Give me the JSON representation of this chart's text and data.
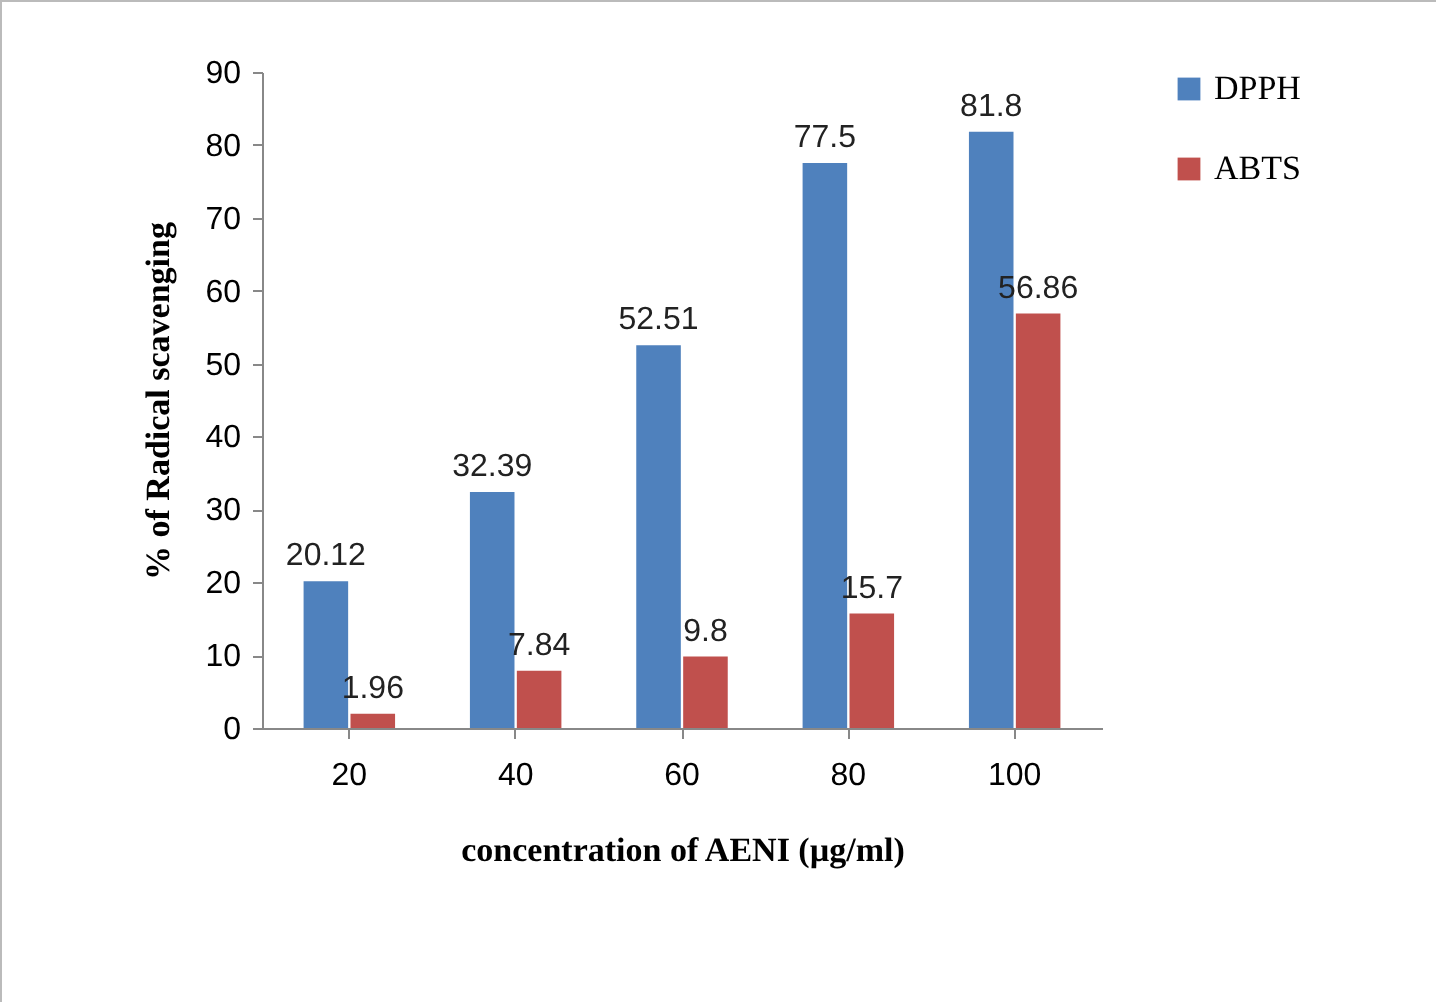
{
  "chart_data": {
    "type": "bar",
    "xlabel": "concentration of  AENI (µg/ml)",
    "ylabel": "% of Radical scavenging",
    "categories": [
      "20",
      "40",
      "60",
      "80",
      "100"
    ],
    "series": [
      {
        "name": "DPPH",
        "color": "#4f81bd",
        "values": [
          20.12,
          32.39,
          52.51,
          77.5,
          81.8
        ]
      },
      {
        "name": "ABTS",
        "color": "#c0504d",
        "values": [
          1.96,
          7.84,
          9.8,
          15.7,
          56.86
        ]
      }
    ],
    "ylim": [
      0,
      90
    ],
    "yticks": [
      0,
      10,
      20,
      30,
      40,
      50,
      60,
      70,
      80,
      90
    ],
    "grid": false,
    "legend": "right",
    "data_labels": true
  }
}
